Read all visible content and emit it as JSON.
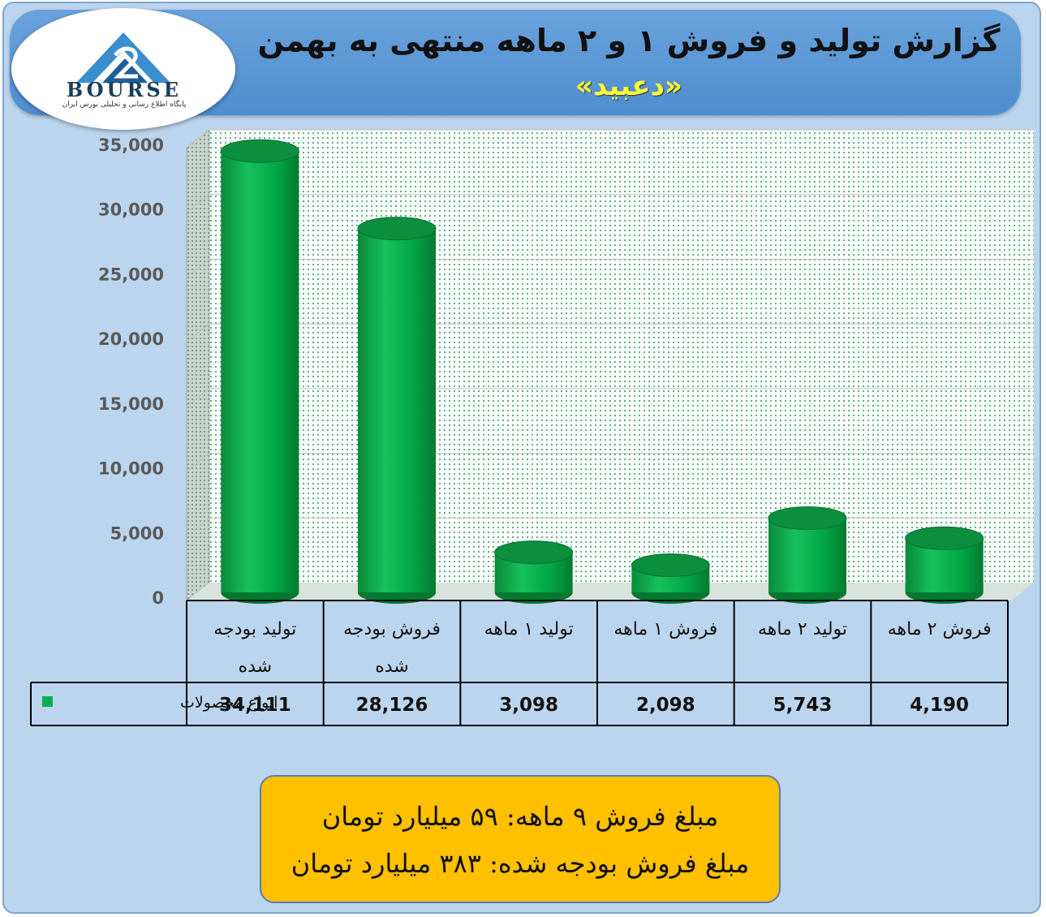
{
  "header": {
    "title": "گزارش تولید و فروش ۱ و ۲ ماهه منتهی به بهمن",
    "subtitle": "«دعبید»"
  },
  "logo": {
    "wordmark": "BOURSE",
    "tagline": "پایگاه اطلاع رسانی و تحلیلی بورس ایران"
  },
  "chart_data": {
    "type": "bar",
    "style": "3d-cylinder",
    "categories": [
      "تولید بودجه شده",
      "فروش بودجه شده",
      "تولید ۱ ماهه",
      "فروش ۱ ماهه",
      "تولید ۲ ماهه",
      "فروش ۲ ماهه"
    ],
    "category_lines": [
      [
        "تولید بودجه",
        "شده"
      ],
      [
        "فروش بودجه",
        "شده"
      ],
      [
        "تولید ۱ ماهه"
      ],
      [
        "فروش ۱ ماهه"
      ],
      [
        "تولید ۲ ماهه"
      ],
      [
        "فروش ۲ ماهه"
      ]
    ],
    "series": [
      {
        "name": "انواع محصولات",
        "values": [
          34111,
          28126,
          3098,
          2098,
          5743,
          4190
        ],
        "color": "#00b050"
      }
    ],
    "value_labels": [
      "34,111",
      "28,126",
      "3,098",
      "2,098",
      "5,743",
      "4,190"
    ],
    "ylim": [
      0,
      35000
    ],
    "yticks": [
      0,
      5000,
      10000,
      15000,
      20000,
      25000,
      30000,
      35000
    ],
    "ytick_labels": [
      "0",
      "5,000",
      "10,000",
      "15,000",
      "20,000",
      "25,000",
      "30,000",
      "35,000"
    ],
    "grid": true,
    "legend": "data-table"
  },
  "summary": {
    "line1": "مبلغ فروش ۹ ماهه: ۵۹ میلیارد تومان",
    "line2": "مبلغ فروش بودجه شده: ۳۸۳ میلیارد تومان"
  },
  "colors": {
    "background": "#bcd5ee",
    "banner": "#5b9bd5",
    "bar": "#00b050",
    "highlight_box": "#ffc000",
    "subtitle": "#ffff33"
  }
}
